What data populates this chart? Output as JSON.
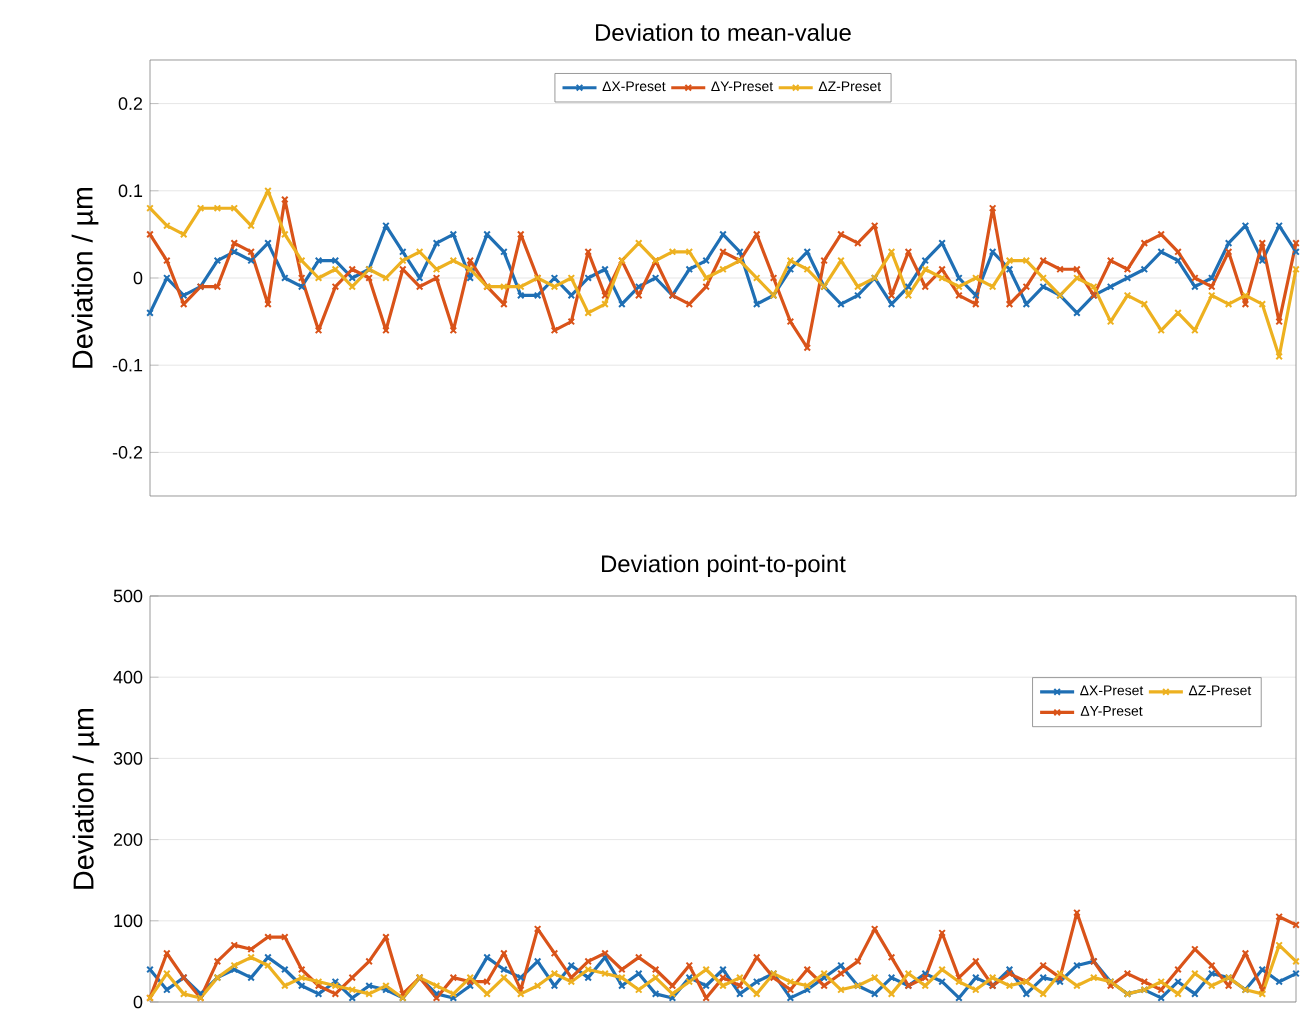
{
  "chart_data": [
    {
      "type": "line",
      "title": "Deviation to mean-value",
      "ylabel": "Deviation / µm",
      "categories": [
        null,
        null,
        null,
        null,
        null,
        null,
        null,
        null,
        null,
        null,
        null,
        null,
        null,
        null,
        null,
        null,
        null,
        null,
        null,
        null,
        null,
        null,
        null,
        null,
        null,
        null,
        null,
        null,
        null,
        null,
        null,
        null,
        null,
        null,
        null,
        null,
        null,
        null,
        null,
        null,
        null,
        null,
        null,
        null,
        null,
        null,
        null,
        null,
        null,
        null,
        null,
        null,
        null,
        null,
        null,
        null,
        null,
        null,
        null,
        null,
        null,
        null,
        null,
        null,
        null,
        null,
        null,
        null,
        null
      ],
      "ylim": [
        -0.25,
        0.25
      ],
      "yticks": [
        -0.2,
        -0.1,
        0,
        0.1,
        0.2
      ],
      "grid": "y",
      "legend": "top",
      "marker": "cross",
      "line_style": "solid",
      "series": [
        {
          "name": "ΔX-Preset",
          "color": "#1f6fb4",
          "values": [
            -0.04,
            0,
            -0.02,
            -0.01,
            0.02,
            0.03,
            0.02,
            0.04,
            0.0,
            -0.01,
            0.02,
            0.02,
            0.0,
            0.01,
            0.06,
            0.03,
            0.0,
            0.04,
            0.05,
            0.0,
            0.05,
            0.03,
            -0.02,
            -0.02,
            0.0,
            -0.02,
            0.0,
            0.01,
            -0.03,
            -0.01,
            0.0,
            -0.02,
            0.01,
            0.02,
            0.05,
            0.03,
            -0.03,
            -0.02,
            0.01,
            0.03,
            -0.01,
            -0.03,
            -0.02,
            0.0,
            -0.03,
            -0.01,
            0.02,
            0.04,
            0.0,
            -0.02,
            0.03,
            0.01,
            -0.03,
            -0.01,
            -0.02,
            -0.04,
            -0.02,
            -0.01,
            0.0,
            0.01,
            0.03,
            0.02,
            -0.01,
            0.0,
            0.04,
            0.06,
            0.02,
            0.06,
            0.03
          ]
        },
        {
          "name": "ΔY-Preset",
          "color": "#d95319",
          "values": [
            0.05,
            0.02,
            -0.03,
            -0.01,
            -0.01,
            0.04,
            0.03,
            -0.03,
            0.09,
            0.0,
            -0.06,
            -0.01,
            0.01,
            0.0,
            -0.06,
            0.01,
            -0.01,
            0.0,
            -0.06,
            0.02,
            -0.01,
            -0.03,
            0.05,
            0.0,
            -0.06,
            -0.05,
            0.03,
            -0.02,
            0.02,
            -0.02,
            0.02,
            -0.02,
            -0.03,
            -0.01,
            0.03,
            0.02,
            0.05,
            0.0,
            -0.05,
            -0.08,
            0.02,
            0.05,
            0.04,
            0.06,
            -0.02,
            0.03,
            -0.01,
            0.01,
            -0.02,
            -0.03,
            0.08,
            -0.03,
            -0.01,
            0.02,
            0.01,
            0.01,
            -0.02,
            0.02,
            0.01,
            0.04,
            0.05,
            0.03,
            0.0,
            -0.01,
            0.03,
            -0.03,
            0.04,
            -0.05,
            0.04
          ]
        },
        {
          "name": "ΔZ-Preset",
          "color": "#edb120",
          "values": [
            0.08,
            0.06,
            0.05,
            0.08,
            0.08,
            0.08,
            0.06,
            0.1,
            0.05,
            0.02,
            0.0,
            0.01,
            -0.01,
            0.01,
            0.0,
            0.02,
            0.03,
            0.01,
            0.02,
            0.01,
            -0.01,
            -0.01,
            -0.01,
            0.0,
            -0.01,
            0.0,
            -0.04,
            -0.03,
            0.02,
            0.04,
            0.02,
            0.03,
            0.03,
            0.0,
            0.01,
            0.02,
            0.0,
            -0.02,
            0.02,
            0.01,
            -0.01,
            0.02,
            -0.01,
            0.0,
            0.03,
            -0.02,
            0.01,
            0.0,
            -0.01,
            0.0,
            -0.01,
            0.02,
            0.02,
            0.0,
            -0.02,
            0.0,
            -0.01,
            -0.05,
            -0.02,
            -0.03,
            -0.06,
            -0.04,
            -0.06,
            -0.02,
            -0.03,
            -0.02,
            -0.03,
            -0.09,
            0.01
          ]
        }
      ]
    },
    {
      "type": "line",
      "title": "Deviation point-to-point",
      "ylabel": "Deviation / µm",
      "categories": [
        null,
        null,
        null,
        null,
        null,
        null,
        null,
        null,
        null,
        null,
        null,
        null,
        null,
        null,
        null,
        null,
        null,
        null,
        null,
        null,
        null,
        null,
        null,
        null,
        null,
        null,
        null,
        null,
        null,
        null,
        null,
        null,
        null,
        null,
        null,
        null,
        null,
        null,
        null,
        null,
        null,
        null,
        null,
        null,
        null,
        null,
        null,
        null,
        null,
        null,
        null,
        null,
        null,
        null,
        null,
        null,
        null,
        null,
        null,
        null,
        null,
        null,
        null,
        null,
        null,
        null,
        null,
        null,
        null
      ],
      "ylim": [
        0,
        500
      ],
      "yticks": [
        0,
        100,
        200,
        300,
        400,
        500
      ],
      "grid": "y",
      "legend": "right",
      "marker": "cross",
      "line_style": "solid",
      "series": [
        {
          "name": "ΔX-Preset",
          "color": "#1f6fb4",
          "values": [
            40,
            15,
            30,
            10,
            30,
            40,
            30,
            55,
            40,
            20,
            10,
            25,
            5,
            20,
            15,
            5,
            30,
            10,
            5,
            20,
            55,
            40,
            30,
            50,
            20,
            45,
            30,
            55,
            20,
            35,
            10,
            5,
            30,
            20,
            40,
            10,
            25,
            35,
            5,
            15,
            30,
            45,
            20,
            10,
            30,
            20,
            35,
            25,
            5,
            30,
            20,
            40,
            10,
            30,
            25,
            45,
            50,
            25,
            10,
            15,
            5,
            25,
            10,
            35,
            30,
            15,
            40,
            25,
            35
          ]
        },
        {
          "name": "ΔY-Preset",
          "color": "#d95319",
          "values": [
            5,
            60,
            30,
            5,
            50,
            70,
            65,
            80,
            80,
            40,
            20,
            10,
            30,
            50,
            80,
            10,
            30,
            5,
            30,
            25,
            25,
            60,
            15,
            90,
            60,
            30,
            50,
            60,
            40,
            55,
            40,
            20,
            45,
            5,
            30,
            20,
            55,
            30,
            15,
            40,
            20,
            35,
            50,
            90,
            55,
            20,
            30,
            85,
            30,
            50,
            20,
            35,
            25,
            45,
            30,
            110,
            50,
            20,
            35,
            25,
            15,
            40,
            65,
            45,
            20,
            60,
            15,
            105,
            95
          ]
        },
        {
          "name": "ΔZ-Preset",
          "color": "#edb120",
          "values": [
            5,
            35,
            10,
            5,
            30,
            45,
            55,
            45,
            20,
            30,
            25,
            20,
            15,
            10,
            20,
            5,
            30,
            20,
            10,
            30,
            10,
            30,
            10,
            20,
            35,
            25,
            40,
            35,
            30,
            15,
            30,
            10,
            25,
            40,
            20,
            30,
            10,
            35,
            25,
            20,
            35,
            15,
            20,
            30,
            10,
            35,
            20,
            40,
            25,
            15,
            30,
            20,
            25,
            10,
            35,
            20,
            30,
            25,
            10,
            15,
            25,
            10,
            35,
            20,
            30,
            15,
            10,
            70,
            50
          ]
        }
      ]
    }
  ]
}
